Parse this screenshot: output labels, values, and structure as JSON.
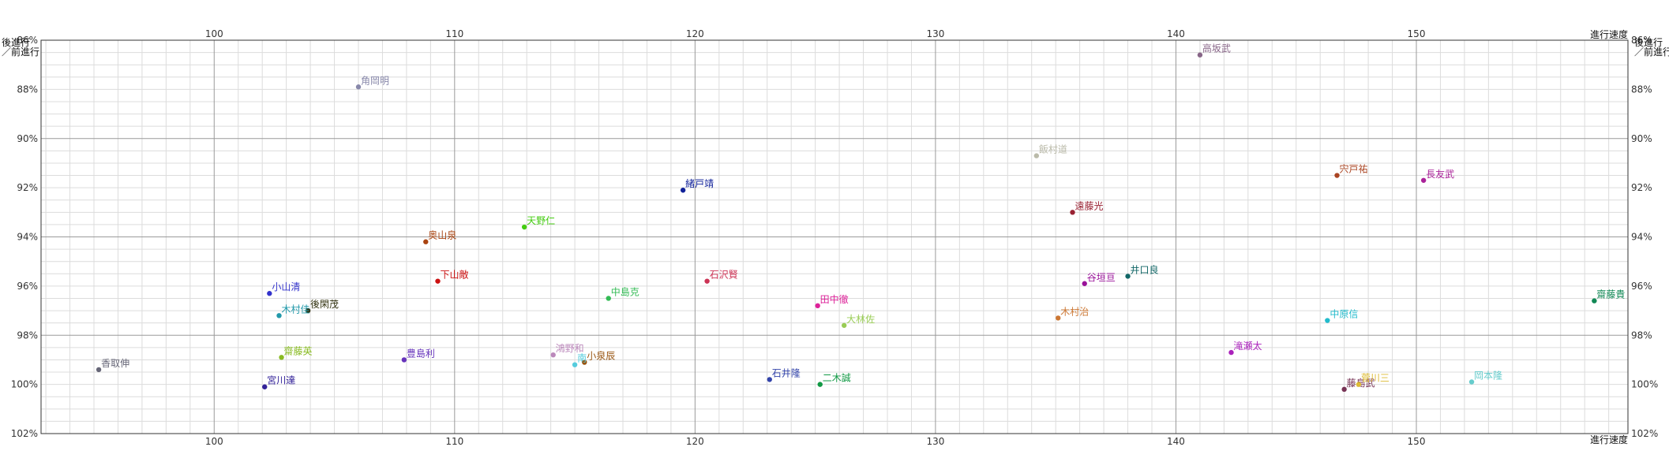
{
  "chart_data": {
    "type": "scatter",
    "title": "",
    "xlabel": "進行速度",
    "ylabel": "後進行／前進行",
    "xlim": [
      92.8,
      158.8
    ],
    "ylim": [
      86.0,
      102.0
    ],
    "x_ticks": [
      100,
      110,
      120,
      130,
      140,
      150
    ],
    "y_ticks": [
      86,
      88,
      90,
      92,
      94,
      96,
      98,
      100,
      102
    ],
    "y_tick_suffix": "%",
    "y_reversed": true,
    "grid": true,
    "points": [
      {
        "label": "角岡明",
        "x": 106.0,
        "y": 87.9,
        "color": "#8888aa"
      },
      {
        "label": "高坂武",
        "x": 141.0,
        "y": 86.6,
        "color": "#886688"
      },
      {
        "label": "飯村道",
        "x": 134.2,
        "y": 90.7,
        "color": "#bbbbaa"
      },
      {
        "label": "宍戸祐",
        "x": 146.7,
        "y": 91.5,
        "color": "#aa4422"
      },
      {
        "label": "長友武",
        "x": 150.3,
        "y": 91.7,
        "color": "#aa2299"
      },
      {
        "label": "緒戸靖",
        "x": 119.5,
        "y": 92.1,
        "color": "#112299"
      },
      {
        "label": "遠藤光",
        "x": 135.7,
        "y": 93.0,
        "color": "#992233"
      },
      {
        "label": "天野仁",
        "x": 112.9,
        "y": 93.6,
        "color": "#44cc11"
      },
      {
        "label": "奥山泉",
        "x": 108.8,
        "y": 94.2,
        "color": "#aa4411"
      },
      {
        "label": "下山敵",
        "x": 109.3,
        "y": 95.8,
        "color": "#cc1111"
      },
      {
        "label": "石沢賢",
        "x": 120.5,
        "y": 95.8,
        "color": "#cc3355"
      },
      {
        "label": "谷垣亘",
        "x": 136.2,
        "y": 95.9,
        "color": "#991199"
      },
      {
        "label": "井口良",
        "x": 138.0,
        "y": 95.6,
        "color": "#116666"
      },
      {
        "label": "小山清",
        "x": 102.3,
        "y": 96.3,
        "color": "#3333cc"
      },
      {
        "label": "中島克",
        "x": 116.4,
        "y": 96.5,
        "color": "#33bb55"
      },
      {
        "label": "齋藤貴",
        "x": 157.4,
        "y": 96.6,
        "color": "#118855"
      },
      {
        "label": "田中徹",
        "x": 125.1,
        "y": 96.8,
        "color": "#dd2299"
      },
      {
        "label": "後閑茂",
        "x": 103.9,
        "y": 97.0,
        "color": "#333311"
      },
      {
        "label": "木村佳",
        "x": 102.7,
        "y": 97.2,
        "color": "#2299aa"
      },
      {
        "label": "木村治",
        "x": 135.1,
        "y": 97.3,
        "color": "#cc7733"
      },
      {
        "label": "中原信",
        "x": 146.3,
        "y": 97.4,
        "color": "#22bbcc"
      },
      {
        "label": "大林佐",
        "x": 126.2,
        "y": 97.6,
        "color": "#99cc55"
      },
      {
        "label": "滝瀬太",
        "x": 142.3,
        "y": 98.7,
        "color": "#aa22bb"
      },
      {
        "label": "鴻野和",
        "x": 114.1,
        "y": 98.8,
        "color": "#bb88bb"
      },
      {
        "label": "齋藤英",
        "x": 102.8,
        "y": 98.9,
        "color": "#88bb22"
      },
      {
        "label": "豊島利",
        "x": 107.9,
        "y": 99.0,
        "color": "#6633bb"
      },
      {
        "label": "小泉辰",
        "x": 115.4,
        "y": 99.1,
        "color": "#995511"
      },
      {
        "label": "南",
        "x": 115.0,
        "y": 99.2,
        "color": "#55ccdd"
      },
      {
        "label": "香取伸",
        "x": 95.2,
        "y": 99.4,
        "color": "#666677"
      },
      {
        "label": "石井隆",
        "x": 123.1,
        "y": 99.8,
        "color": "#3344aa"
      },
      {
        "label": "二木誠",
        "x": 125.2,
        "y": 100.0,
        "color": "#119944"
      },
      {
        "label": "宮川達",
        "x": 102.1,
        "y": 100.1,
        "color": "#332299"
      },
      {
        "label": "岡本隆",
        "x": 152.3,
        "y": 99.9,
        "color": "#66cccc"
      },
      {
        "label": "藤島武",
        "x": 147.0,
        "y": 100.2,
        "color": "#773355"
      },
      {
        "label": "菅川三",
        "x": 147.6,
        "y": 100.0,
        "color": "#ddbb33"
      }
    ]
  }
}
